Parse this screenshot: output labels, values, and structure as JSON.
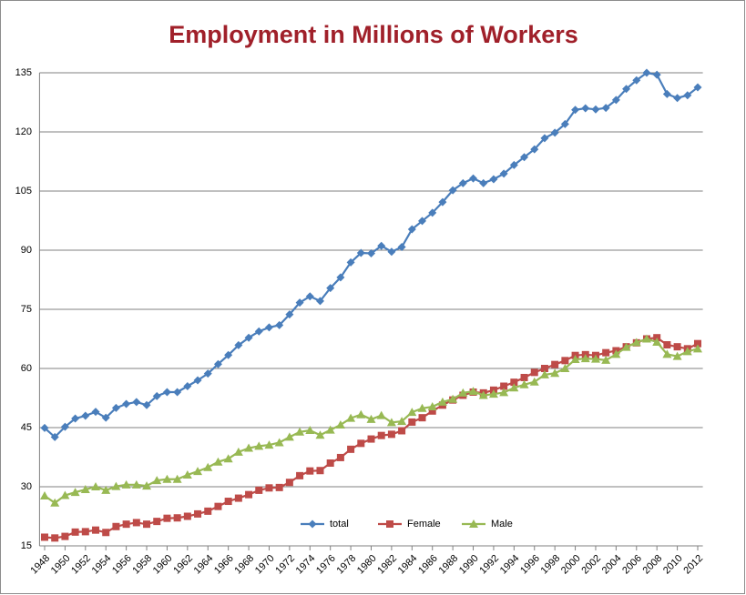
{
  "chart_data": {
    "type": "line",
    "title": "Employment in Millions of Workers",
    "x": [
      1948,
      1949,
      1950,
      1951,
      1952,
      1953,
      1954,
      1955,
      1956,
      1957,
      1958,
      1959,
      1960,
      1961,
      1962,
      1963,
      1964,
      1965,
      1966,
      1967,
      1968,
      1969,
      1970,
      1971,
      1972,
      1973,
      1974,
      1975,
      1976,
      1977,
      1978,
      1979,
      1980,
      1981,
      1982,
      1983,
      1984,
      1985,
      1986,
      1987,
      1988,
      1989,
      1990,
      1991,
      1992,
      1993,
      1994,
      1995,
      1996,
      1997,
      1998,
      1999,
      2000,
      2001,
      2002,
      2003,
      2004,
      2005,
      2006,
      2007,
      2008,
      2009,
      2010,
      2011,
      2012
    ],
    "series": [
      {
        "name": "total",
        "color": "#4a7ebb",
        "marker": "diamond",
        "values": [
          44.9,
          42.6,
          45.2,
          47.3,
          48.0,
          49.0,
          47.5,
          50.0,
          51.0,
          51.5,
          50.7,
          53.0,
          54.0,
          54.0,
          55.5,
          57.0,
          58.7,
          61.1,
          63.4,
          65.9,
          67.8,
          69.4,
          70.4,
          71.0,
          73.7,
          76.7,
          78.3,
          77.1,
          80.4,
          83.1,
          86.9,
          89.3,
          89.2,
          91.1,
          89.6,
          90.8,
          95.3,
          97.4,
          99.5,
          102.2,
          105.2,
          107.0,
          108.2,
          107.0,
          108.0,
          109.4,
          111.6,
          113.6,
          115.6,
          118.4,
          119.8,
          122.0,
          125.6,
          126.0,
          125.7,
          126.1,
          128.1,
          130.9,
          133.1,
          135.0,
          134.5,
          129.6,
          128.6,
          129.3,
          131.3
        ]
      },
      {
        "name": "Female",
        "color": "#be4b48",
        "marker": "square",
        "values": [
          17.2,
          17.0,
          17.4,
          18.5,
          18.6,
          19.0,
          18.4,
          19.9,
          20.5,
          20.9,
          20.5,
          21.2,
          22.0,
          22.1,
          22.5,
          23.1,
          23.8,
          25.0,
          26.3,
          27.1,
          28.0,
          29.1,
          29.7,
          29.8,
          31.1,
          32.8,
          34.0,
          34.1,
          36.0,
          37.4,
          39.5,
          41.0,
          42.1,
          43.0,
          43.3,
          44.2,
          46.4,
          47.5,
          49.2,
          50.7,
          52.0,
          53.2,
          54.0,
          53.8,
          54.5,
          55.5,
          56.5,
          57.7,
          59.0,
          60.0,
          61.0,
          62.0,
          63.3,
          63.5,
          63.3,
          64.0,
          64.5,
          65.5,
          66.5,
          67.5,
          67.8,
          66.0,
          65.5,
          65.0,
          66.3
        ]
      },
      {
        "name": "Male",
        "color": "#98b954",
        "marker": "triangle",
        "values": [
          27.7,
          25.9,
          27.8,
          28.6,
          29.3,
          30.0,
          29.1,
          30.1,
          30.5,
          30.5,
          30.2,
          31.6,
          31.9,
          31.9,
          33.0,
          33.9,
          34.9,
          36.3,
          37.1,
          38.8,
          39.8,
          40.3,
          40.6,
          41.2,
          42.6,
          43.9,
          44.3,
          43.1,
          44.4,
          45.7,
          47.4,
          48.3,
          47.1,
          48.1,
          46.3,
          46.6,
          48.9,
          49.9,
          50.3,
          51.5,
          52.2,
          53.8,
          54.2,
          53.2,
          53.5,
          53.9,
          55.1,
          55.9,
          56.6,
          58.4,
          58.8,
          60.0,
          62.3,
          62.5,
          62.4,
          62.1,
          63.6,
          65.4,
          66.6,
          67.5,
          66.7,
          63.6,
          63.1,
          64.3,
          65.0
        ]
      }
    ],
    "xlim": [
      1947.5,
      2012.5
    ],
    "xticks": [
      1948,
      1950,
      1952,
      1954,
      1956,
      1958,
      1960,
      1962,
      1964,
      1966,
      1968,
      1970,
      1972,
      1974,
      1976,
      1978,
      1980,
      1982,
      1984,
      1986,
      1988,
      1990,
      1992,
      1994,
      1996,
      1998,
      2000,
      2002,
      2004,
      2006,
      2008,
      2010,
      2012
    ],
    "ylim": [
      15,
      135
    ],
    "yticks": [
      15,
      30,
      45,
      60,
      75,
      90,
      105,
      120,
      135
    ],
    "grid": true,
    "legend": "bottom"
  }
}
